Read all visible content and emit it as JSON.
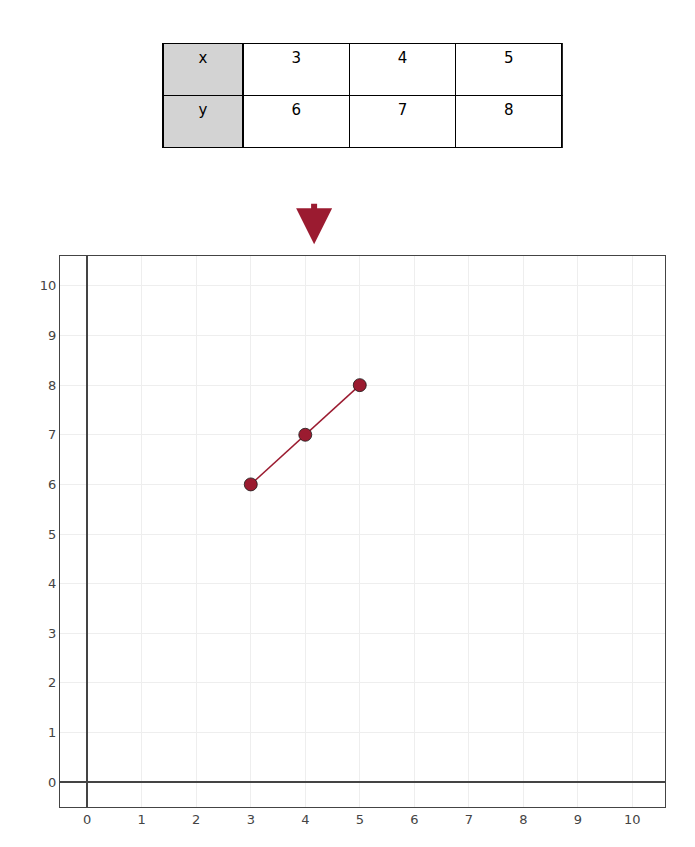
{
  "chart_data": [
    {
      "type": "table",
      "row_labels": [
        "x",
        "y"
      ],
      "rows": [
        [
          3,
          4,
          5
        ],
        [
          6,
          7,
          8
        ]
      ]
    },
    {
      "type": "line",
      "x": [
        3,
        4,
        5
      ],
      "values": [
        6,
        7,
        8
      ],
      "color": "#9B1B30",
      "marker": "circle",
      "xlim": [
        -0.5,
        10.6
      ],
      "ylim": [
        -0.5,
        10.6
      ],
      "xticks": [
        0,
        1,
        2,
        3,
        4,
        5,
        6,
        7,
        8,
        9,
        10
      ],
      "yticks": [
        0,
        1,
        2,
        3,
        4,
        5,
        6,
        7,
        8,
        9,
        10
      ],
      "grid": true
    }
  ]
}
